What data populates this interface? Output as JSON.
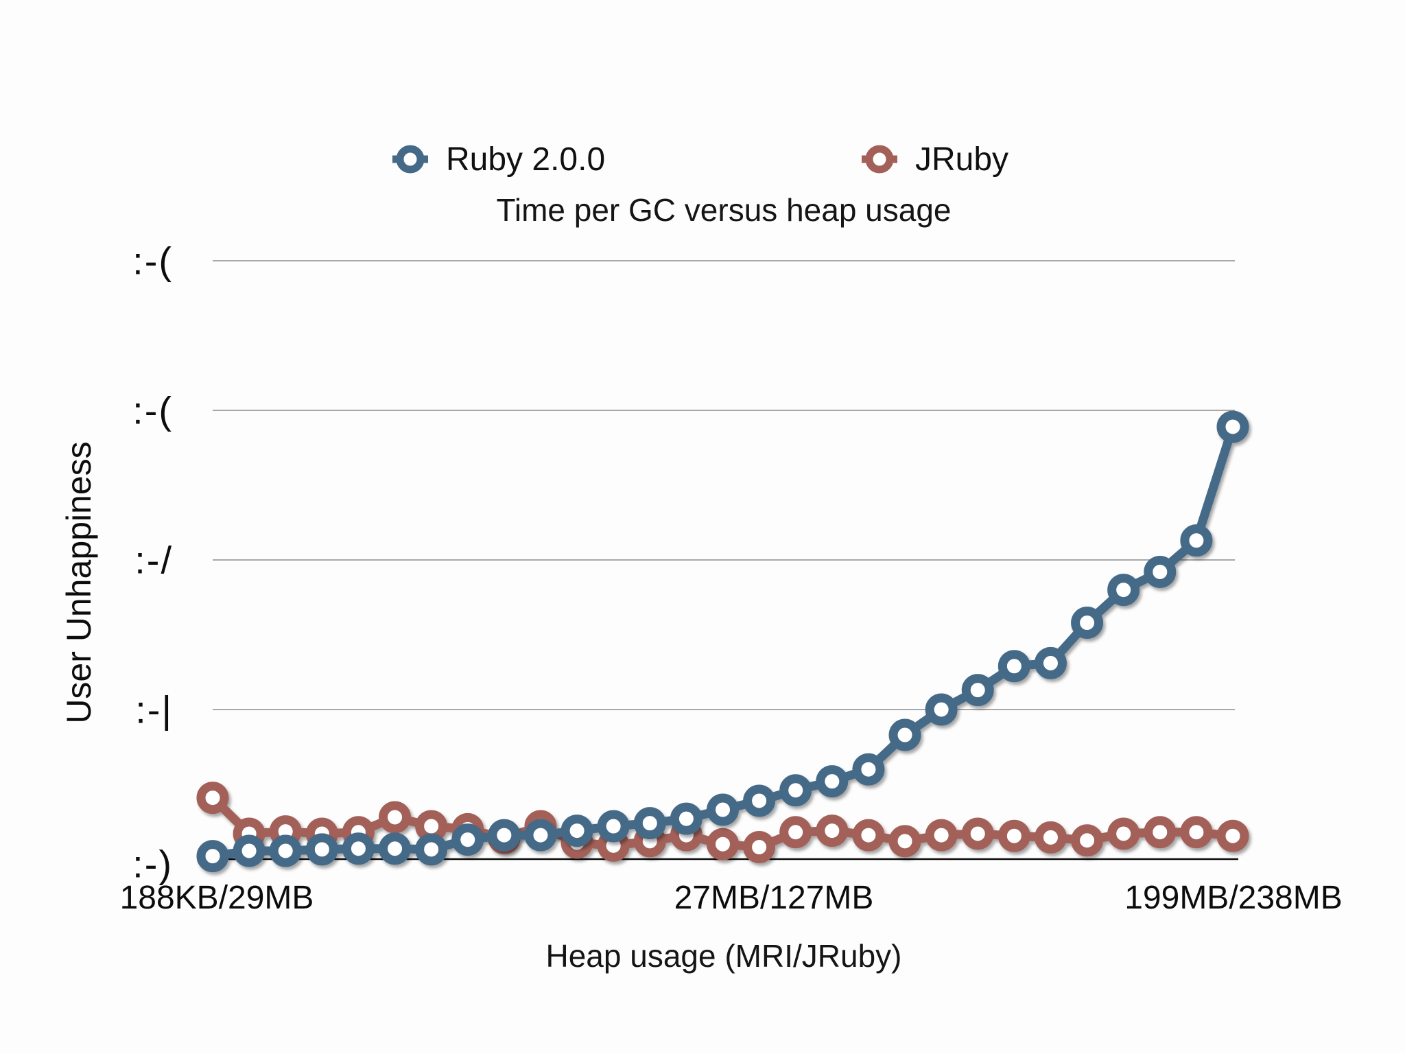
{
  "page": {
    "background": "#fdfdfd"
  },
  "legend": {
    "items": [
      {
        "label": "Ruby 2.0.0",
        "color": "#456a88",
        "marker": "ring-icon"
      },
      {
        "label": "JRuby",
        "color": "#a36058",
        "marker": "ring-icon"
      }
    ]
  },
  "chart_data": {
    "type": "line",
    "title": "Time per GC versus heap usage",
    "xlabel": "Heap usage (MRI/JRuby)",
    "ylabel": "User Unhappiness",
    "grid": true,
    "legend_position": "top",
    "y_axis": {
      "min": 0,
      "max": 4,
      "unit": "user unhappiness (smiley scale, 0 = happy)",
      "tick_labels_top_to_bottom": [
        ":-(",
        ":-(",
        ":-/",
        ":-|",
        ":-)"
      ]
    },
    "x_axis": {
      "tick_labels": [
        "188KB/29MB",
        "27MB/127MB",
        "199MB/238MB"
      ],
      "tick_point_indices": [
        0,
        15,
        28
      ]
    },
    "n_points": 29,
    "series": [
      {
        "name": "Ruby 2.0.0",
        "color": "#456a88",
        "values": [
          0.02,
          0.055,
          0.055,
          0.065,
          0.07,
          0.07,
          0.065,
          0.13,
          0.16,
          0.16,
          0.19,
          0.22,
          0.24,
          0.27,
          0.33,
          0.39,
          0.46,
          0.52,
          0.6,
          0.83,
          1.0,
          1.13,
          1.29,
          1.31,
          1.58,
          1.8,
          1.92,
          2.13,
          2.89
        ]
      },
      {
        "name": "JRuby",
        "color": "#a36058",
        "values": [
          0.41,
          0.17,
          0.185,
          0.17,
          0.18,
          0.28,
          0.22,
          0.2,
          0.14,
          0.22,
          0.11,
          0.09,
          0.12,
          0.16,
          0.1,
          0.08,
          0.18,
          0.19,
          0.16,
          0.12,
          0.16,
          0.17,
          0.155,
          0.145,
          0.125,
          0.17,
          0.18,
          0.18,
          0.155
        ]
      }
    ]
  }
}
